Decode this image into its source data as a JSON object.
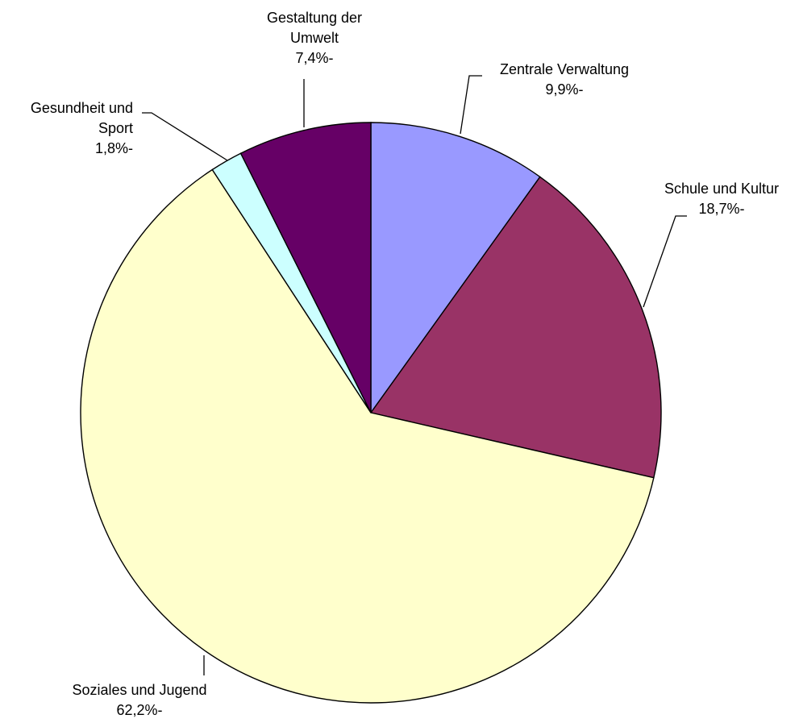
{
  "chart_data": {
    "type": "pie",
    "title": "",
    "slices": [
      {
        "name": "Zentrale Verwaltung",
        "label_lines": [
          "Zentrale Verwaltung"
        ],
        "value": 9.9,
        "value_label": "9,9%-",
        "color": "#9999ff"
      },
      {
        "name": "Schule und Kultur",
        "label_lines": [
          "Schule und Kultur"
        ],
        "value": 18.7,
        "value_label": "18,7%-",
        "color": "#993366"
      },
      {
        "name": "Soziales und Jugend",
        "label_lines": [
          "Soziales und Jugend"
        ],
        "value": 62.2,
        "value_label": "62,2%-",
        "color": "#ffffcc"
      },
      {
        "name": "Gesundheit und Sport",
        "label_lines": [
          "Gesundheit und",
          "Sport"
        ],
        "value": 1.8,
        "value_label": "1,8%-",
        "color": "#ccffff"
      },
      {
        "name": "Gestaltung der Umwelt",
        "label_lines": [
          "Gestaltung der",
          "Umwelt"
        ],
        "value": 7.4,
        "value_label": "7,4%-",
        "color": "#660066"
      }
    ],
    "start_angle_deg": 0,
    "direction": "clockwise",
    "legend": "none",
    "data_labels": "outside-with-leader-lines"
  }
}
